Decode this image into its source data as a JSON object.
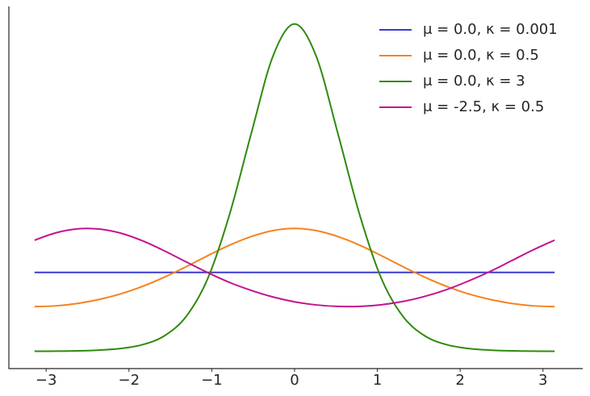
{
  "chart_data": {
    "type": "line",
    "x": [
      -3.14,
      -2.88,
      -2.62,
      -2.36,
      -2.09,
      -1.83,
      -1.57,
      -1.31,
      -1.05,
      -0.79,
      -0.52,
      -0.26,
      0,
      0.26,
      0.52,
      0.79,
      1.05,
      1.31,
      1.57,
      1.83,
      2.09,
      2.36,
      2.62,
      2.88,
      3.14
    ],
    "series": [
      {
        "name": "μ = 0.0, κ = 0.001",
        "color": "#3a3ad0",
        "values": [
          0.159,
          0.159,
          0.159,
          0.159,
          0.159,
          0.159,
          0.159,
          0.159,
          0.159,
          0.159,
          0.159,
          0.159,
          0.159,
          0.159,
          0.159,
          0.159,
          0.159,
          0.159,
          0.159,
          0.159,
          0.159,
          0.159,
          0.159,
          0.159,
          0.159
        ]
      },
      {
        "name": "μ = 0.0, κ = 0.5",
        "color": "#f5821f",
        "values": [
          0.0908,
          0.0923,
          0.0971,
          0.1051,
          0.1166,
          0.1315,
          0.1497,
          0.1703,
          0.1922,
          0.2131,
          0.2308,
          0.2426,
          0.2467,
          0.2426,
          0.2308,
          0.2131,
          0.1922,
          0.1703,
          0.1497,
          0.1315,
          0.1166,
          0.1051,
          0.0971,
          0.0923,
          0.0908
        ]
      },
      {
        "name": "μ = 0.0, κ = 3",
        "color": "#2e8b0c",
        "values": [
          0.00162,
          0.0018,
          0.00243,
          0.00391,
          0.00728,
          0.015,
          0.0326,
          0.0709,
          0.1461,
          0.272,
          0.4383,
          0.5912,
          0.655,
          0.5912,
          0.4383,
          0.272,
          0.1461,
          0.0709,
          0.0326,
          0.015,
          0.00728,
          0.00391,
          0.00243,
          0.0018,
          0.00162
        ]
      },
      {
        "name": "μ = -2.5, κ = 0.5",
        "color": "#c2138f",
        "values": [
          0.2234,
          0.2381,
          0.2459,
          0.2455,
          0.2369,
          0.2217,
          0.2019,
          0.1801,
          0.1587,
          0.1393,
          0.1229,
          0.1099,
          0.1003,
          0.0941,
          0.0911,
          0.0912,
          0.0945,
          0.101,
          0.111,
          0.1243,
          0.1411,
          0.1608,
          0.1823,
          0.2039,
          0.2234
        ]
      }
    ],
    "xlim": [
      -3.45,
      3.48
    ],
    "ylim": [
      -0.033,
      0.69
    ],
    "xticks": [
      {
        "value": -3,
        "label": "−3"
      },
      {
        "value": -2,
        "label": "−2"
      },
      {
        "value": -1,
        "label": "−1"
      },
      0,
      1,
      2,
      3
    ],
    "legend": "upper right"
  }
}
